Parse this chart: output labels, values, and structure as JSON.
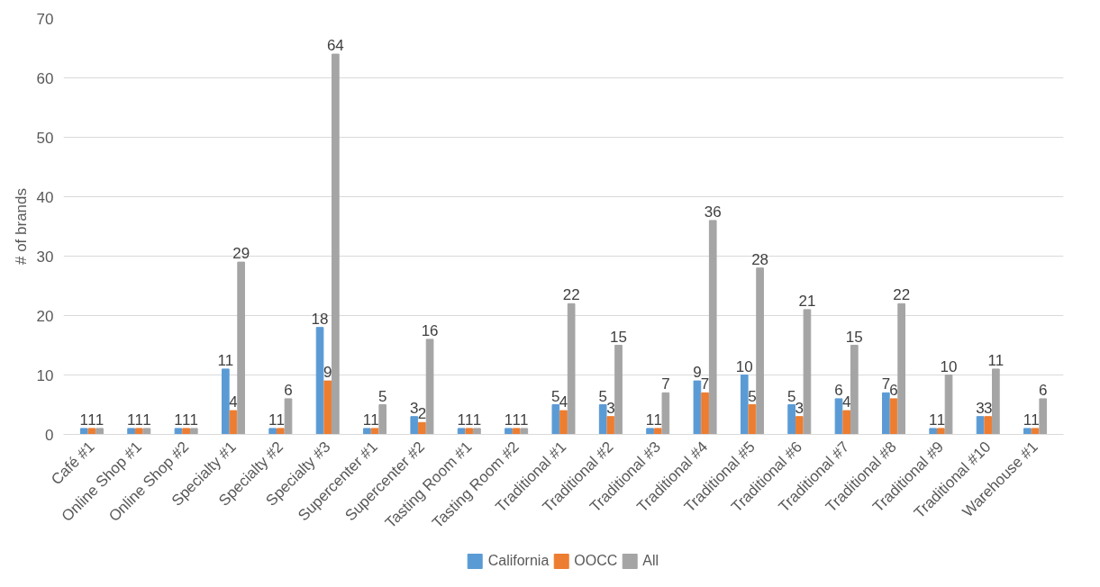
{
  "chart_data": {
    "type": "bar",
    "ylabel": "# of brands",
    "categories": [
      "Café #1",
      "Online Shop #1",
      "Online Shop #2",
      "Specialty #1",
      "Specialty #2",
      "Specialty #3",
      "Supercenter #1",
      "Supercenter #2",
      "Tasting Room #1",
      "Tasting Room #2",
      "Traditional #1",
      "Traditional #2",
      "Traditional #3",
      "Traditional #4",
      "Traditional #5",
      "Traditional #6",
      "Traditional #7",
      "Traditional #8",
      "Traditional #9",
      "Traditional #10",
      "Warehouse #1"
    ],
    "series": [
      {
        "name": "California",
        "color": "#5b9bd5",
        "values": [
          1,
          1,
          1,
          11,
          1,
          18,
          1,
          3,
          1,
          1,
          5,
          5,
          1,
          9,
          10,
          5,
          6,
          7,
          1,
          3,
          1
        ]
      },
      {
        "name": "OOCC",
        "color": "#ed7d31",
        "values": [
          1,
          1,
          1,
          4,
          1,
          9,
          1,
          2,
          1,
          1,
          4,
          3,
          1,
          7,
          5,
          3,
          4,
          6,
          1,
          3,
          1
        ]
      },
      {
        "name": "All",
        "color": "#a5a5a5",
        "values": [
          1,
          1,
          1,
          29,
          6,
          64,
          5,
          16,
          1,
          1,
          22,
          15,
          7,
          36,
          28,
          21,
          15,
          22,
          10,
          11,
          6
        ]
      }
    ],
    "ylim": [
      0,
      70
    ],
    "yticks": [
      0,
      10,
      20,
      30,
      40,
      50,
      60,
      70
    ],
    "grid": "y",
    "legend": "bottom",
    "data_labels": true
  }
}
